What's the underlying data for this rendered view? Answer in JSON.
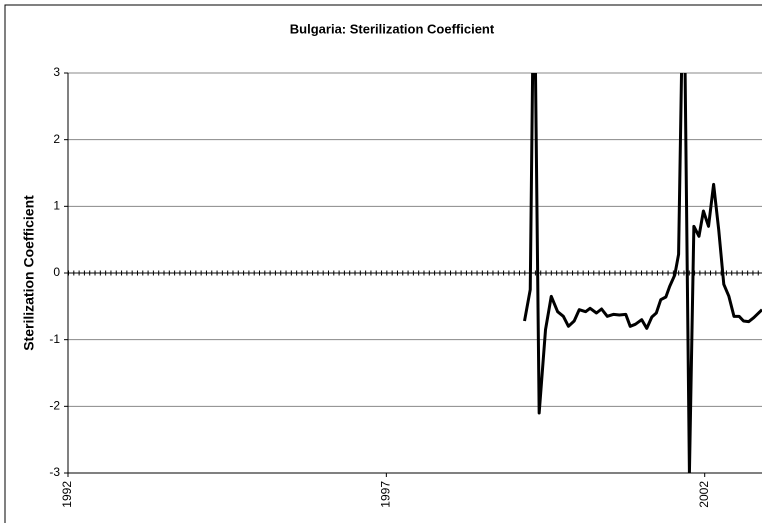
{
  "chart_data": {
    "type": "line",
    "title": "Bulgaria: Sterilization Coefficient",
    "y_label": "Sterilization Coefficient",
    "x": [
      1999.17,
      1999.26,
      1999.32,
      1999.4,
      1999.5,
      1999.59,
      1999.69,
      1999.78,
      1999.86,
      1999.95,
      2000.03,
      2000.13,
      2000.2,
      2000.3,
      2000.38,
      2000.47,
      2000.57,
      2000.66,
      2000.76,
      2000.83,
      2000.91,
      2001.01,
      2001.09,
      2001.17,
      2001.24,
      2001.31,
      2001.39,
      2001.45,
      2001.53,
      2001.59,
      2001.67,
      2001.76,
      2001.83,
      2001.91,
      2001.98,
      2002.06,
      2002.14,
      2002.22,
      2002.3,
      2002.38,
      2002.46,
      2002.54,
      2002.61,
      2002.69,
      2002.77,
      2002.9
    ],
    "series": [
      {
        "name": "Sterilization Coefficient",
        "color": "#000000",
        "values": [
          -0.72,
          -0.25,
          5,
          -2.1,
          -0.85,
          -0.35,
          -0.58,
          -0.65,
          -0.8,
          -0.72,
          -0.55,
          -0.58,
          -0.53,
          -0.6,
          -0.54,
          -0.65,
          -0.62,
          -0.63,
          -0.62,
          -0.8,
          -0.77,
          -0.7,
          -0.83,
          -0.66,
          -0.6,
          -0.4,
          -0.36,
          -0.2,
          -0.03,
          0.28,
          5,
          -3,
          0.7,
          0.55,
          0.93,
          0.7,
          1.33,
          0.65,
          -0.17,
          -0.35,
          -0.65,
          -0.65,
          -0.72,
          -0.73,
          -0.67,
          -0.55
        ]
      }
    ],
    "xlim": [
      1992,
      2002.9
    ],
    "xticks": [
      1992,
      1997,
      2002
    ],
    "ylim": [
      -3,
      3
    ],
    "yticks": [
      -3,
      -2,
      -1,
      0,
      1,
      2,
      3
    ],
    "grid": true
  }
}
